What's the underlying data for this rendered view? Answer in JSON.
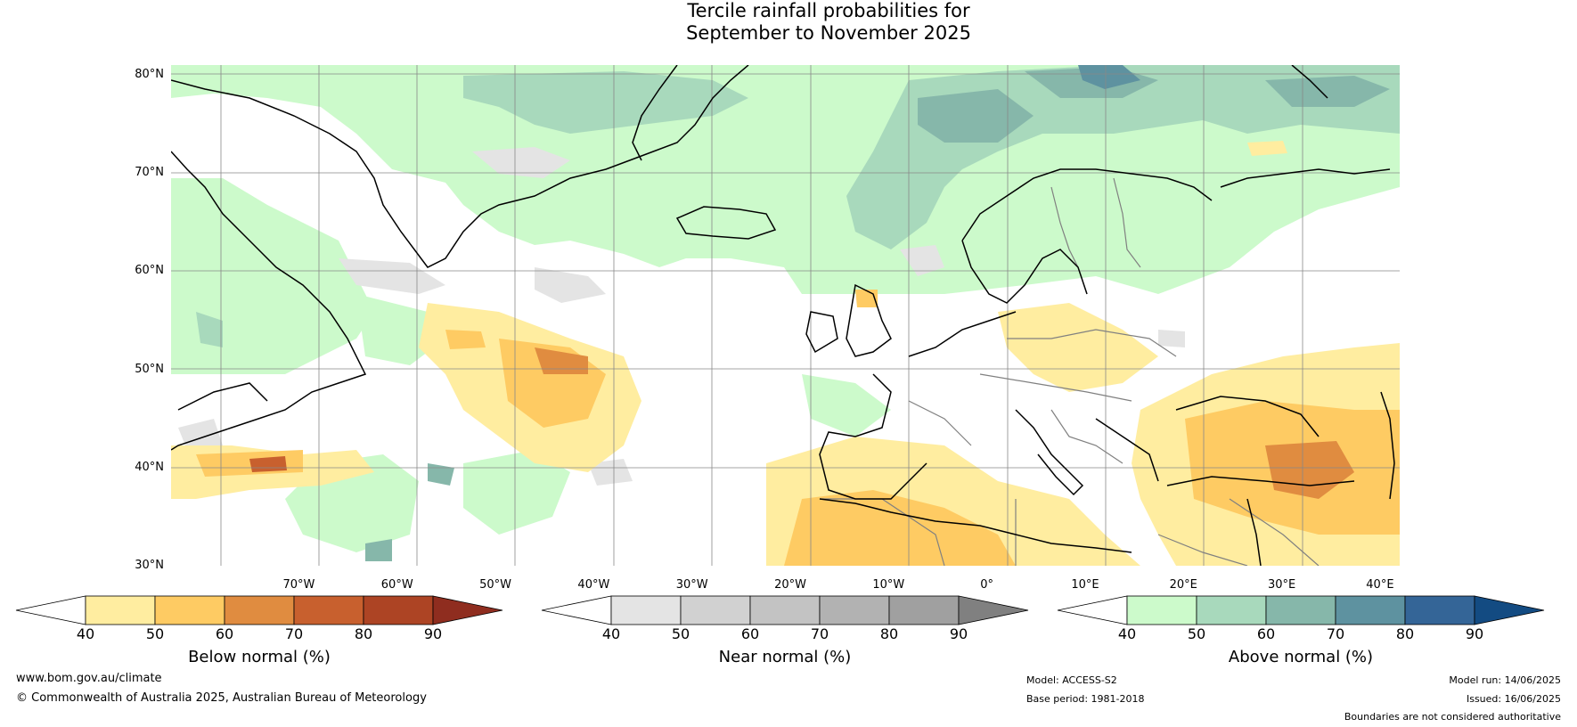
{
  "title": {
    "line1": "Tercile rainfall probabilities for",
    "line2": "September to November 2025"
  },
  "map": {
    "lat_labels": [
      "80°N",
      "70°N",
      "60°N",
      "50°N",
      "40°N",
      "30°N"
    ],
    "lon_labels": [
      "70°W",
      "60°W",
      "50°W",
      "40°W",
      "30°W",
      "20°W",
      "10°W",
      "0°",
      "10°E",
      "20°E",
      "30°E",
      "40°E"
    ],
    "extent": {
      "lon": [
        -83,
        42
      ],
      "lat": [
        30,
        81
      ]
    },
    "colors": {
      "ocean_land_bg": "#ffffff",
      "grid": "#888888",
      "coast": "#000000",
      "borders": "#808080"
    }
  },
  "colorbars": [
    {
      "name": "below",
      "label": "Below normal (%)",
      "ticks": [
        "40",
        "50",
        "60",
        "70",
        "80",
        "90"
      ],
      "colors": [
        "#ffffff",
        "#ffeda0",
        "#fecb63",
        "#e08c40",
        "#c8602e",
        "#ad4424",
        "#8f2d1f"
      ]
    },
    {
      "name": "near",
      "label": "Near normal (%)",
      "ticks": [
        "40",
        "50",
        "60",
        "70",
        "80",
        "90"
      ],
      "colors": [
        "#ffffff",
        "#e4e4e4",
        "#d1d1d1",
        "#c3c3c3",
        "#b2b2b2",
        "#a0a0a0",
        "#808080"
      ]
    },
    {
      "name": "above",
      "label": "Above normal (%)",
      "ticks": [
        "40",
        "50",
        "60",
        "70",
        "80",
        "90"
      ],
      "colors": [
        "#ffffff",
        "#ccfacb",
        "#a8d9bc",
        "#86b7aa",
        "#5e92a0",
        "#346597",
        "#134b82"
      ]
    }
  ],
  "footer": {
    "website": "www.bom.gov.au/climate",
    "copyright": "© Commonwealth of Australia 2025, Australian Bureau of Meteorology",
    "model": "Model: ACCESS-S2",
    "base_period": "Base period: 1981-2018",
    "model_run": "Model run: 14/06/2025",
    "issued": "Issued: 16/06/2025",
    "disclaimer": "Boundaries are not considered authoritative"
  }
}
